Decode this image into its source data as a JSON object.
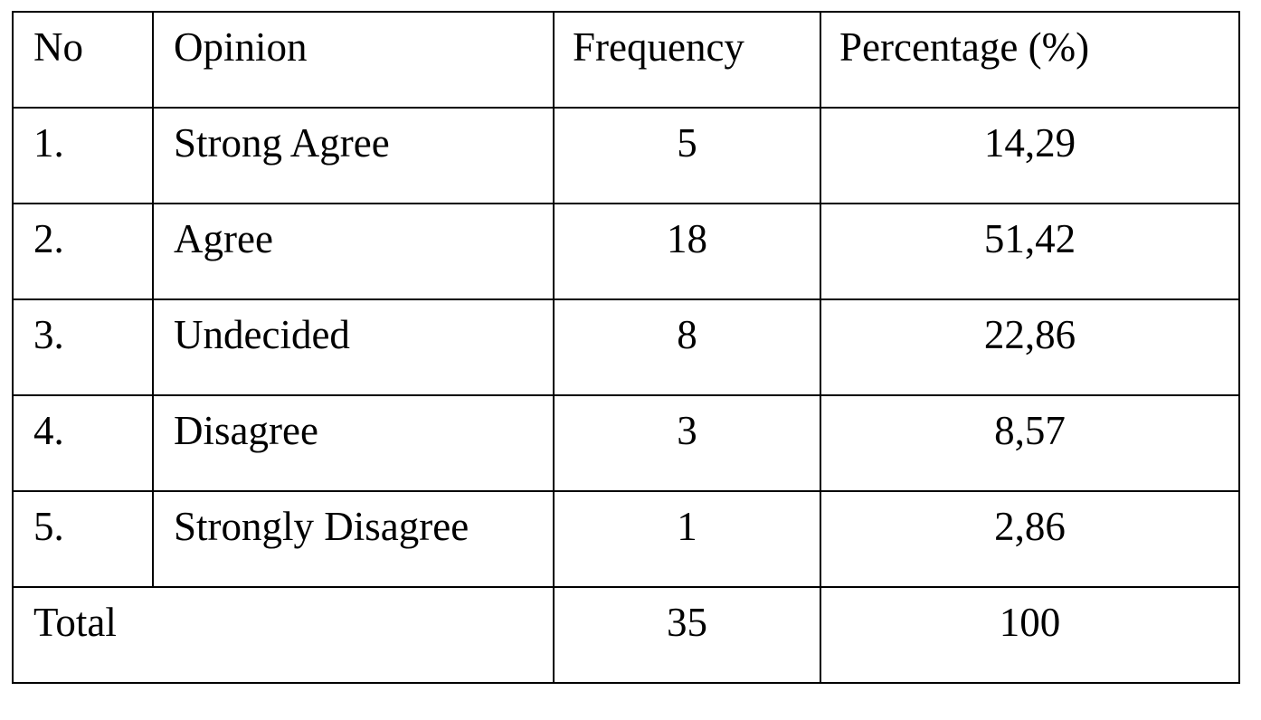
{
  "table": {
    "header": [
      "No",
      "Opinion",
      "Frequency",
      "Percentage (%)"
    ],
    "rows": [
      [
        "1.",
        "Strong Agree",
        "5",
        "14,29"
      ],
      [
        "2.",
        "Agree",
        "18",
        "51,42"
      ],
      [
        "3.",
        "Undecided",
        "8",
        "22,86"
      ],
      [
        "4.",
        "Disagree",
        "3",
        "8,57"
      ],
      [
        "5.",
        "Strongly Disagree",
        "1",
        "2,86"
      ]
    ],
    "total": {
      "label": "Total",
      "frequency": "35",
      "percentage": "100"
    }
  }
}
